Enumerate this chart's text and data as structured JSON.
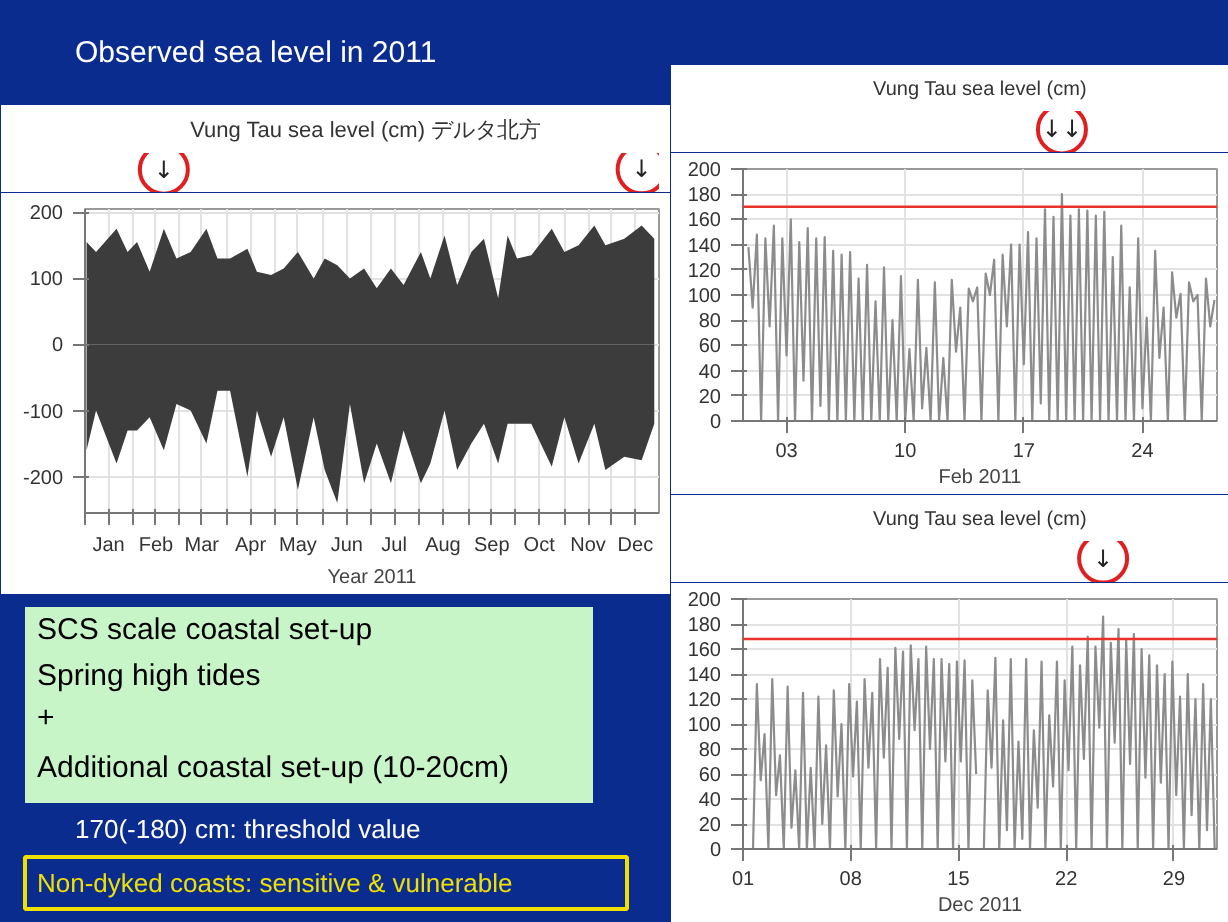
{
  "chart_data": [
    {
      "type": "other",
      "title": "Observed sea level in 2011",
      "annotations": [
        "SCS scale coastal set-up",
        "Spring high tides",
        "+",
        "Additional coastal set-up (10-20cm)",
        "170(-180) cm: threshold value",
        "Non-dyked coasts:  sensitive & vulnerable"
      ]
    },
    {
      "type": "area",
      "title": "Vung Tau sea level (cm)   デルタ北方",
      "xlabel": "Year 2011",
      "xlim": [
        "2011-01-01",
        "2011-12-31"
      ],
      "ylim": [
        -255,
        205
      ],
      "yticks": [
        -200,
        -100,
        0,
        100,
        200
      ],
      "xticks": [
        {
          "value": "2011-01-01",
          "label": null
        },
        {
          "value": "2011-01-16",
          "label": "Jan"
        },
        {
          "value": "2011-02-01",
          "label": null
        },
        {
          "value": "2011-02-15",
          "label": "Feb"
        },
        {
          "value": "2011-03-01",
          "label": null
        },
        {
          "value": "2011-03-16",
          "label": "Mar"
        },
        {
          "value": "2011-04-01",
          "label": null
        },
        {
          "value": "2011-04-16",
          "label": "Apr"
        },
        {
          "value": "2011-05-01",
          "label": null
        },
        {
          "value": "2011-05-16",
          "label": "May"
        },
        {
          "value": "2011-06-01",
          "label": null
        },
        {
          "value": "2011-06-16",
          "label": "Jun"
        },
        {
          "value": "2011-07-01",
          "label": null
        },
        {
          "value": "2011-07-16",
          "label": "Jul"
        },
        {
          "value": "2011-08-01",
          "label": null
        },
        {
          "value": "2011-08-16",
          "label": "Aug"
        },
        {
          "value": "2011-09-01",
          "label": null
        },
        {
          "value": "2011-09-16",
          "label": "Sep"
        },
        {
          "value": "2011-10-01",
          "label": null
        },
        {
          "value": "2011-10-16",
          "label": "Oct"
        },
        {
          "value": "2011-11-01",
          "label": null
        },
        {
          "value": "2011-11-16",
          "label": "Nov"
        },
        {
          "value": "2011-12-01",
          "label": null
        },
        {
          "value": "2011-12-16",
          "label": "Dec"
        }
      ],
      "grid": true,
      "annotations": [
        {
          "text": "↓",
          "x": "2011-02-20",
          "y": 175
        },
        {
          "text": "↓",
          "x": "2011-12-20",
          "y": 180
        }
      ],
      "series": [
        {
          "color": "#3c3c3c",
          "x": [
            "2011-01-02",
            "2011-01-08",
            "2011-01-21",
            "2011-01-28",
            "2011-02-03",
            "2011-02-11",
            "2011-02-20",
            "2011-02-28",
            "2011-03-09",
            "2011-03-19",
            "2011-03-26",
            "2011-04-03",
            "2011-04-14",
            "2011-04-20",
            "2011-04-29",
            "2011-05-07",
            "2011-05-16",
            "2011-05-26",
            "2011-06-02",
            "2011-06-10",
            "2011-06-18",
            "2011-06-27",
            "2011-07-05",
            "2011-07-14",
            "2011-07-22",
            "2011-08-02",
            "2011-08-08",
            "2011-08-17",
            "2011-08-25",
            "2011-09-03",
            "2011-09-11",
            "2011-09-20",
            "2011-09-26",
            "2011-10-02",
            "2011-10-11",
            "2011-10-24",
            "2011-11-01",
            "2011-11-10",
            "2011-11-20",
            "2011-11-27",
            "2011-12-09",
            "2011-12-20",
            "2011-12-28"
          ],
          "values": [
            155,
            140,
            175,
            140,
            155,
            110,
            175,
            130,
            140,
            175,
            130,
            130,
            145,
            110,
            105,
            115,
            140,
            100,
            130,
            120,
            100,
            115,
            85,
            115,
            90,
            140,
            100,
            165,
            90,
            140,
            160,
            70,
            165,
            130,
            135,
            175,
            140,
            150,
            180,
            150,
            160,
            180,
            160
          ]
        },
        {
          "color": "#3c3c3c",
          "x": [
            "2011-01-02",
            "2011-01-08",
            "2011-01-21",
            "2011-01-28",
            "2011-02-03",
            "2011-02-11",
            "2011-02-20",
            "2011-02-28",
            "2011-03-09",
            "2011-03-19",
            "2011-03-26",
            "2011-04-03",
            "2011-04-14",
            "2011-04-20",
            "2011-04-29",
            "2011-05-07",
            "2011-05-16",
            "2011-05-26",
            "2011-06-02",
            "2011-06-10",
            "2011-06-18",
            "2011-06-27",
            "2011-07-05",
            "2011-07-14",
            "2011-07-22",
            "2011-08-02",
            "2011-08-08",
            "2011-08-17",
            "2011-08-25",
            "2011-09-03",
            "2011-09-11",
            "2011-09-20",
            "2011-09-26",
            "2011-10-02",
            "2011-10-11",
            "2011-10-24",
            "2011-11-01",
            "2011-11-10",
            "2011-11-20",
            "2011-11-27",
            "2011-12-09",
            "2011-12-20",
            "2011-12-28"
          ],
          "values": [
            -160,
            -100,
            -180,
            -130,
            -130,
            -110,
            -160,
            -90,
            -100,
            -150,
            -70,
            -70,
            -200,
            -100,
            -170,
            -110,
            -220,
            -110,
            -190,
            -240,
            -90,
            -210,
            -150,
            -210,
            -130,
            -210,
            -180,
            -100,
            -190,
            -150,
            -120,
            -180,
            -120,
            -120,
            -120,
            -185,
            -110,
            -180,
            -120,
            -190,
            -170,
            -175,
            -120
          ]
        }
      ]
    },
    {
      "type": "line",
      "title": "Vung Tau sea level (cm)",
      "xlabel": "Feb 2011",
      "xlim": [
        0.43,
        28.4
      ],
      "ylim": [
        0,
        200
      ],
      "yticks": [
        0,
        20,
        40,
        60,
        80,
        100,
        120,
        140,
        160,
        180,
        200
      ],
      "xticks": [
        {
          "value": 3,
          "label": "03"
        },
        {
          "value": 10,
          "label": "10"
        },
        {
          "value": 17,
          "label": "17"
        },
        {
          "value": 24,
          "label": "24"
        }
      ],
      "grid": true,
      "annotations": [
        {
          "text": "↓↓",
          "x": 19.25,
          "y": 180
        }
      ],
      "ref_lines": [
        {
          "axis": "y",
          "value": 170,
          "color": "#e8322a"
        }
      ],
      "series": [
        {
          "color": "#8c8c8c",
          "x": [
            0.75,
            1,
            1.25,
            1.5,
            1.75,
            2,
            2.25,
            2.5,
            2.75,
            3,
            3.25,
            3.5,
            3.75,
            4,
            4.25,
            4.5,
            4.75,
            5,
            5.25,
            5.5,
            5.75,
            6,
            6.25,
            6.5,
            6.75,
            7,
            7.25,
            7.5,
            7.75,
            8,
            8.25,
            8.5,
            8.75,
            9,
            9.25,
            9.5,
            9.75,
            10,
            10.25,
            10.5,
            10.75,
            11,
            11.25,
            11.5,
            11.75,
            12,
            12.25,
            12.5,
            12.75,
            13,
            13.25,
            13.5,
            13.75,
            14,
            14.25,
            14.5,
            14.75,
            15,
            15.25,
            15.5,
            15.75,
            16,
            16.25,
            16.5,
            16.75,
            17,
            17.25,
            17.5,
            17.75,
            18,
            18.25,
            18.5,
            18.75,
            19,
            19.25,
            19.5,
            19.75,
            20,
            20.25,
            20.5,
            20.75,
            21,
            21.25,
            21.5,
            21.75,
            22,
            22.25,
            22.5,
            22.75,
            23,
            23.25,
            23.5,
            23.75,
            24,
            24.25,
            24.5,
            24.75,
            25,
            25.25,
            25.5,
            25.75,
            26,
            26.25,
            26.5,
            26.75,
            27,
            27.25,
            27.5,
            27.75,
            28,
            28.25
          ],
          "values": [
            138,
            90,
            148,
            0,
            145,
            75,
            155,
            0,
            145,
            52,
            160,
            0,
            142,
            32,
            153,
            0,
            145,
            12,
            146,
            0,
            135,
            0,
            132,
            0,
            134,
            0,
            113,
            0,
            124,
            0,
            95,
            0,
            122,
            0,
            80,
            0,
            115,
            0,
            57,
            0,
            112,
            10,
            58,
            0,
            110,
            0,
            50,
            0,
            112,
            55,
            90,
            0,
            105,
            95,
            106,
            0,
            117,
            100,
            128,
            0,
            132,
            75,
            140,
            0,
            140,
            45,
            150,
            0,
            145,
            14,
            168,
            0,
            162,
            0,
            180,
            0,
            163,
            0,
            168,
            0,
            167,
            0,
            163,
            0,
            166,
            0,
            130,
            0,
            155,
            0,
            106,
            0,
            145,
            10,
            82,
            0,
            135,
            50,
            90,
            0,
            118,
            82,
            101,
            0,
            110,
            95,
            100,
            0,
            113,
            75,
            96
          ]
        }
      ]
    },
    {
      "type": "line",
      "title": "Vung Tau sea level (cm)",
      "xlabel": "Dec 2011",
      "xlim": [
        1,
        31.8
      ],
      "ylim": [
        0,
        200
      ],
      "yticks": [
        0,
        20,
        40,
        60,
        80,
        100,
        120,
        140,
        160,
        180,
        200
      ],
      "xticks": [
        {
          "value": 1,
          "label": "01"
        },
        {
          "value": 8,
          "label": "08"
        },
        {
          "value": 15,
          "label": "15"
        },
        {
          "value": 22,
          "label": "22"
        },
        {
          "value": 29,
          "label": "29"
        }
      ],
      "grid": true,
      "annotations": [
        {
          "text": "↓",
          "x": 24.4,
          "y": 186
        }
      ],
      "ref_lines": [
        {
          "axis": "y",
          "value": 168,
          "color": "#e8322a"
        }
      ],
      "series": [
        {
          "color": "#8c8c8c",
          "x": [
            1.65,
            1.9,
            2.15,
            2.4,
            2.65,
            2.9,
            3.15,
            3.4,
            3.65,
            3.9,
            4.15,
            4.4,
            4.65,
            4.9,
            5.15,
            5.4,
            5.65,
            5.9,
            6.15,
            6.4,
            6.65,
            6.9,
            7.15,
            7.4,
            7.65,
            7.9,
            8.15,
            8.4,
            8.65,
            8.9,
            9.15,
            9.4,
            9.65,
            9.9,
            10.15,
            10.4,
            10.65,
            10.9,
            11.15,
            11.4,
            11.65,
            11.9,
            12.15,
            12.4,
            12.65,
            12.9,
            13.15,
            13.4,
            13.65,
            13.9,
            14.15,
            14.4,
            14.65,
            14.9,
            15.15,
            15.4,
            15.65,
            15.9,
            16.15,
            16.4,
            16.65,
            16.9,
            17.15,
            17.4,
            17.65,
            17.9,
            18.15,
            18.4,
            18.65,
            18.9,
            19.15,
            19.4,
            19.65,
            19.9,
            20.15,
            20.4,
            20.65,
            20.9,
            21.15,
            21.4,
            21.65,
            21.9,
            22.15,
            22.4,
            22.65,
            22.9,
            23.15,
            23.4,
            23.65,
            23.9,
            24.15,
            24.4,
            24.65,
            24.9,
            25.15,
            25.4,
            25.65,
            25.9,
            26.15,
            26.4,
            26.65,
            26.9,
            27.15,
            27.4,
            27.65,
            27.9,
            28.15,
            28.4,
            28.65,
            28.9,
            29.15,
            29.4,
            29.65,
            29.9,
            30.15,
            30.4,
            30.65,
            30.9,
            31.15,
            31.4,
            31.65
          ],
          "values": [
            0,
            132,
            55,
            92,
            0,
            136,
            43,
            75,
            0,
            130,
            17,
            63,
            0,
            125,
            0,
            65,
            0,
            122,
            20,
            83,
            0,
            127,
            42,
            100,
            0,
            132,
            58,
            118,
            0,
            136,
            65,
            125,
            0,
            152,
            73,
            145,
            0,
            161,
            88,
            158,
            0,
            163,
            95,
            152,
            0,
            162,
            80,
            152,
            0,
            152,
            70,
            148,
            0,
            150,
            70,
            151,
            0,
            135,
            60,
            null,
            0,
            127,
            65,
            153,
            0,
            103,
            15,
            152,
            0,
            86,
            8,
            152,
            0,
            95,
            33,
            150,
            0,
            107,
            50,
            150,
            0,
            135,
            63,
            162,
            0,
            147,
            72,
            170,
            0,
            162,
            97,
            186,
            0,
            165,
            85,
            176,
            0,
            167,
            68,
            172,
            0,
            160,
            57,
            155,
            0,
            147,
            53,
            140,
            0,
            150,
            43,
            122,
            0,
            140,
            27,
            120,
            0,
            132,
            15,
            120,
            0
          ]
        }
      ]
    }
  ]
}
